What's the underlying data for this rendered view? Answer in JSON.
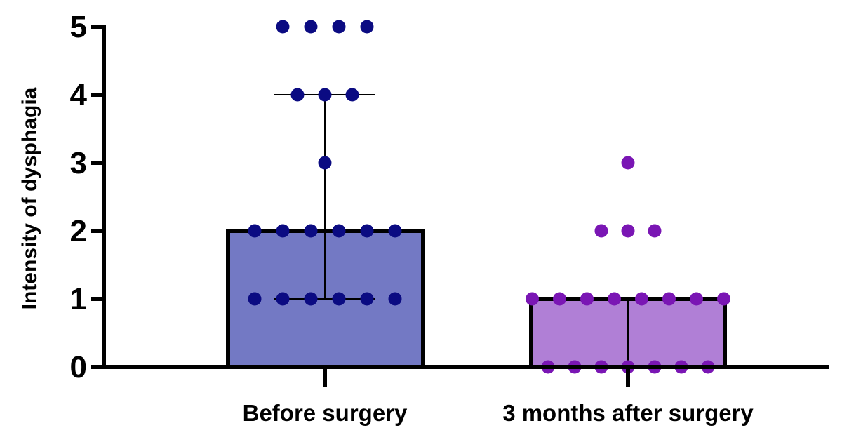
{
  "chart_data": {
    "type": "bar",
    "ylabel": "Intensity of dysphagia",
    "xlabel": "",
    "ylim": [
      0,
      5
    ],
    "yticks": [
      "0",
      "1",
      "2",
      "3",
      "4",
      "5"
    ],
    "categories": [
      "Before surgery",
      "3 months after surgery"
    ],
    "values": [
      2,
      1
    ],
    "error_range": [
      [
        1,
        4
      ],
      [
        0,
        1
      ]
    ],
    "points": [
      [
        5,
        5,
        5,
        5,
        4,
        4,
        4,
        3,
        2,
        2,
        2,
        2,
        2,
        2,
        1,
        1,
        1,
        1,
        1,
        1
      ],
      [
        3,
        2,
        2,
        2,
        1,
        1,
        1,
        1,
        1,
        1,
        1,
        1,
        0,
        0,
        0,
        0,
        0,
        0,
        0
      ]
    ],
    "bar_fill_colors": [
      "#7379c4",
      "#b07fd6"
    ],
    "point_colors": [
      "#0b0b82",
      "#7a16b4"
    ],
    "grid": false,
    "legend": "none"
  }
}
